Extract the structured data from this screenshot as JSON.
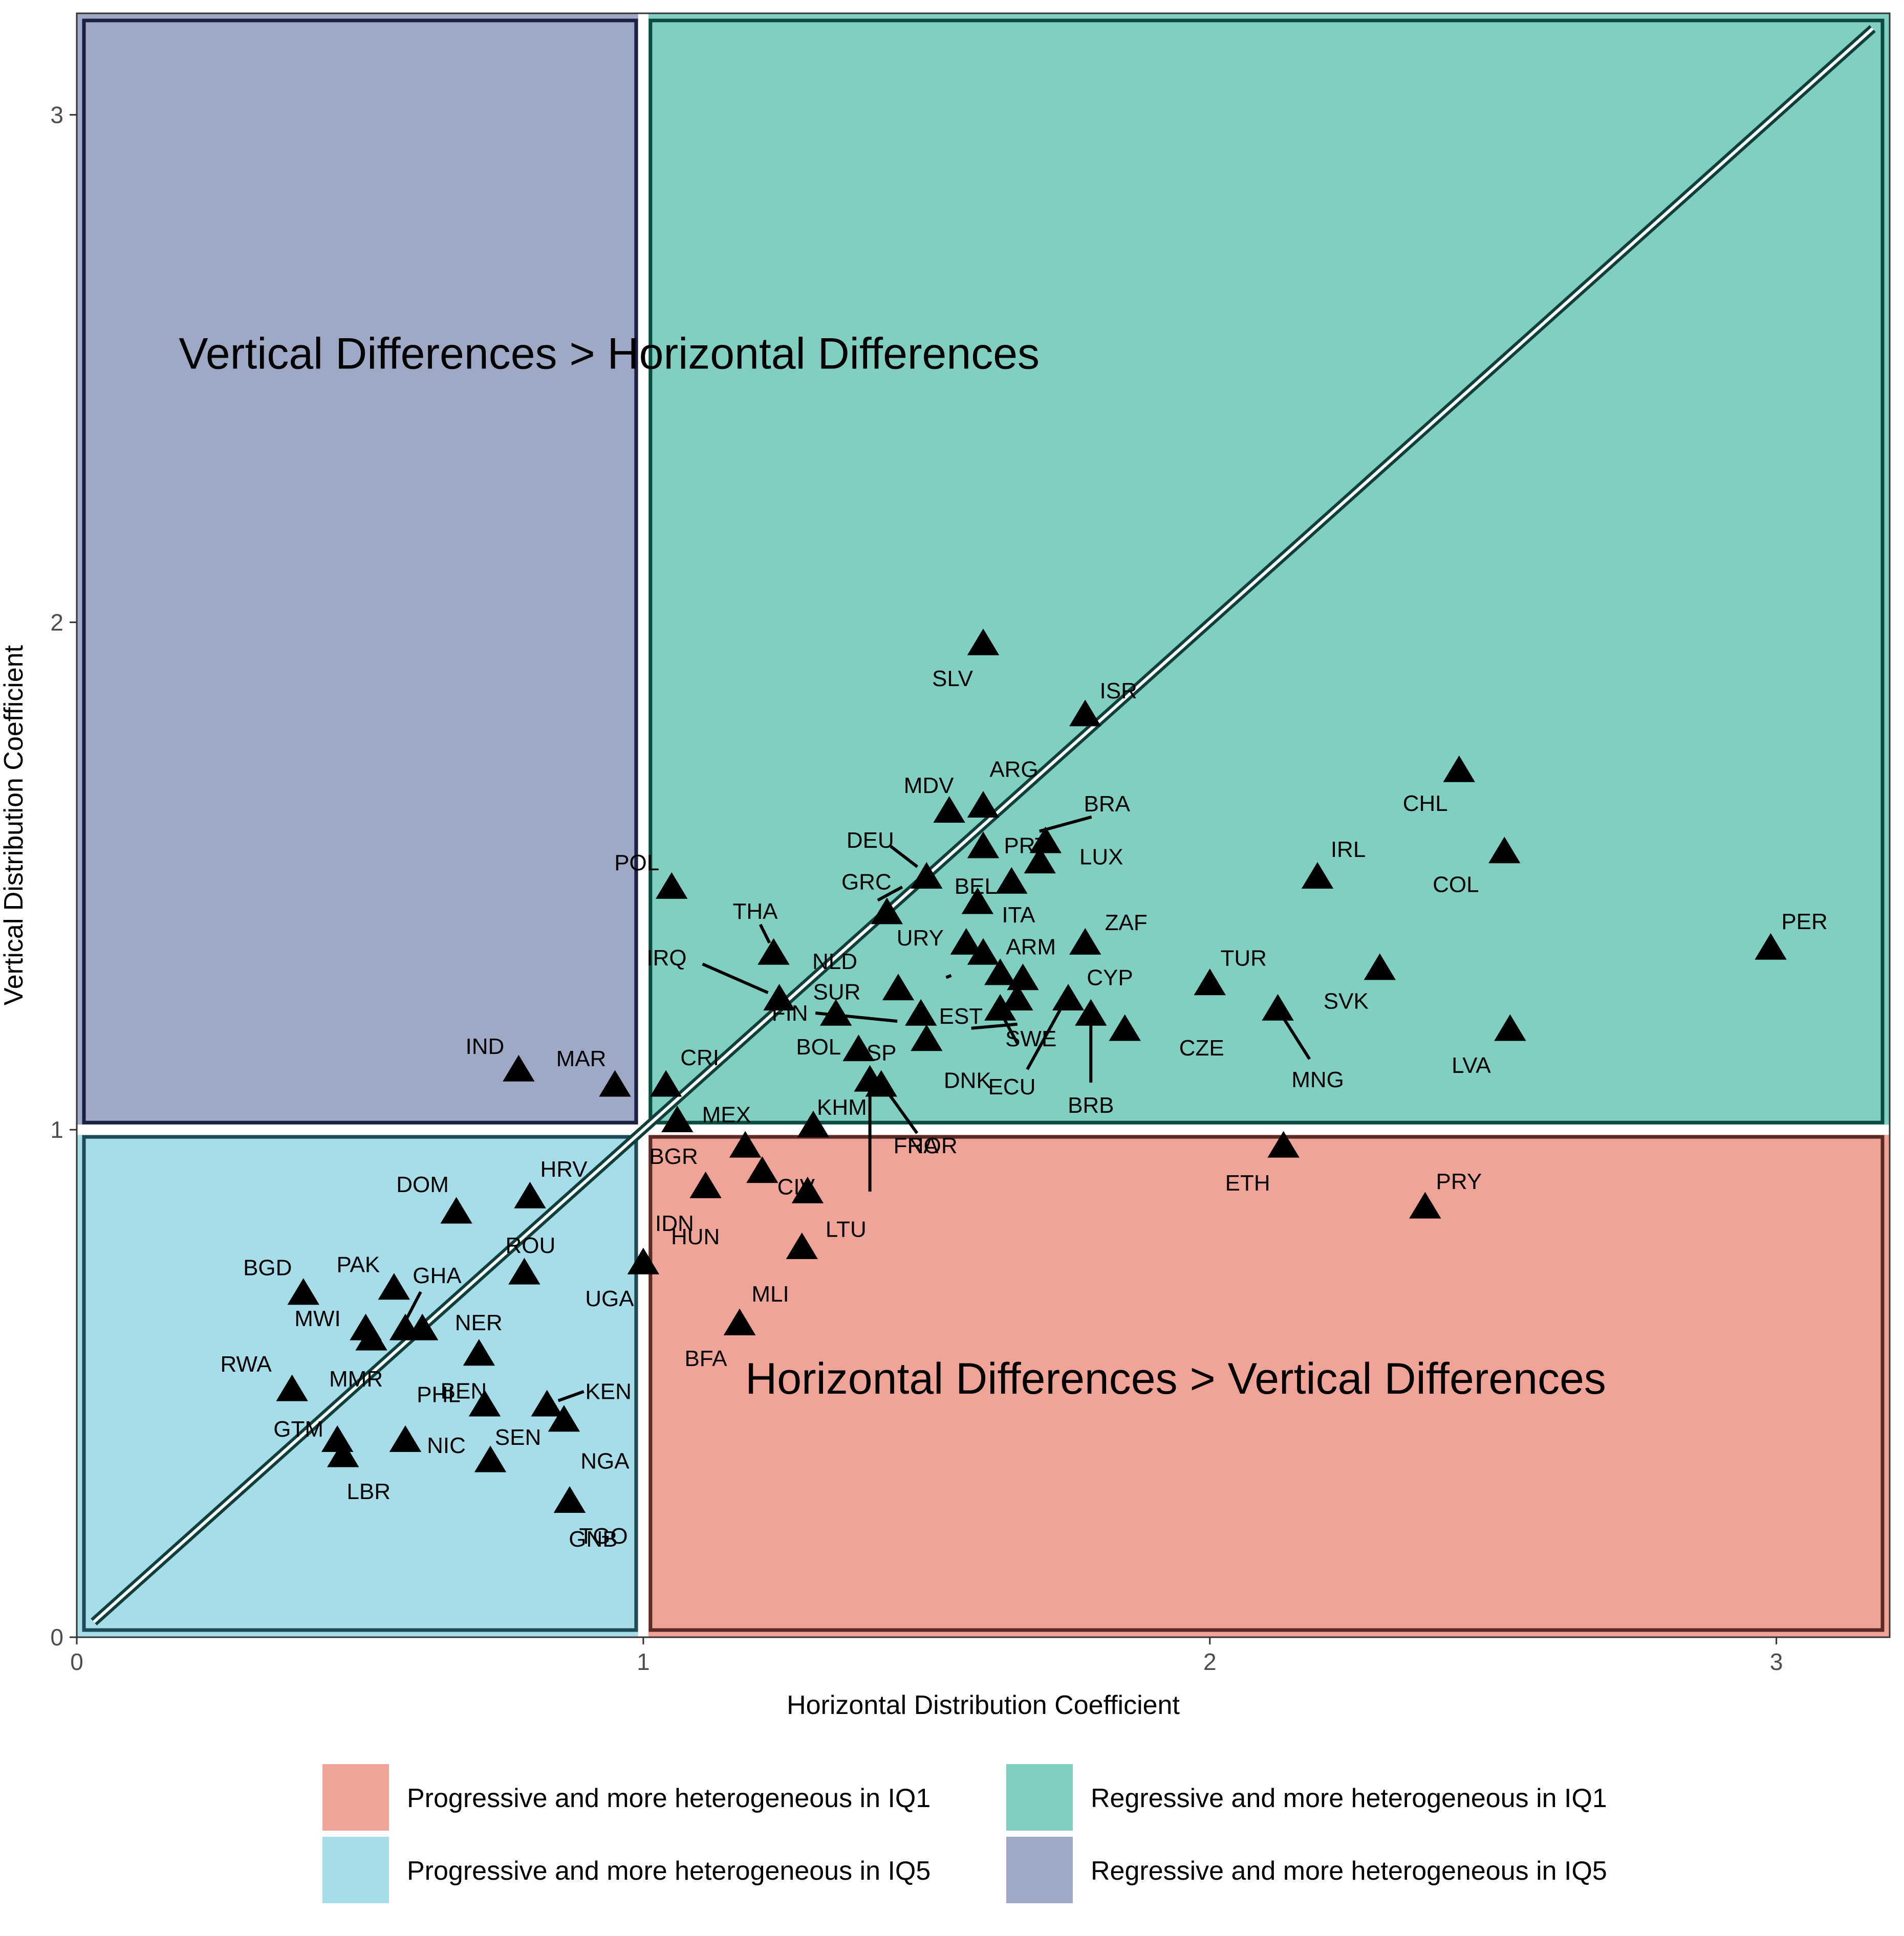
{
  "chart_data": {
    "type": "scatter",
    "xlabel": "Horizontal Distribution Coefficient",
    "ylabel": "Vertical Distribution Coefficient",
    "xlim": [
      0,
      3.2
    ],
    "ylim": [
      0,
      3.2
    ],
    "x_ticks": [
      "0",
      "1",
      "2",
      "3"
    ],
    "y_ticks": [
      "0",
      "1",
      "2",
      "3"
    ],
    "grid": false,
    "legend_position": "bottom",
    "diagonal_reference_line": true,
    "quadrant_divider": 1,
    "regions": [
      {
        "key": "progressive_iq1",
        "label": "Progressive and more heterogeneous in IQ1",
        "color": "#f0a498",
        "x": [
          1,
          3.2
        ],
        "y": [
          0,
          1
        ]
      },
      {
        "key": "regressive_iq1",
        "label": "Regressive and more heterogeneous in IQ1",
        "color": "#80cfc2",
        "x": [
          1,
          3.2
        ],
        "y": [
          1,
          3.2
        ]
      },
      {
        "key": "progressive_iq5",
        "label": "Progressive and more heterogeneous in IQ5",
        "color": "#a7dce9",
        "x": [
          0,
          1
        ],
        "y": [
          0,
          1
        ]
      },
      {
        "key": "regressive_iq5",
        "label": "Regressive and more heterogeneous in IQ5",
        "color": "#9ea9c6",
        "x": [
          0,
          1
        ],
        "y": [
          1,
          3.2
        ]
      }
    ],
    "annotations": [
      {
        "text": "Vertical Differences > Horizontal Differences",
        "x": 0.18,
        "y": 2.5
      },
      {
        "text": "Horizontal Differences > Vertical Differences",
        "x": 1.18,
        "y": 0.48
      }
    ],
    "points": [
      {
        "label": "SLV",
        "x": 1.6,
        "y": 1.96
      },
      {
        "label": "ISR",
        "x": 1.78,
        "y": 1.82
      },
      {
        "label": "CHL",
        "x": 2.44,
        "y": 1.71
      },
      {
        "label": "ARG",
        "x": 1.6,
        "y": 1.64
      },
      {
        "label": "MDV",
        "x": 1.54,
        "y": 1.63
      },
      {
        "label": "BRA",
        "x": 1.71,
        "y": 1.57
      },
      {
        "label": "PRT",
        "x": 1.6,
        "y": 1.56
      },
      {
        "label": "COL",
        "x": 2.52,
        "y": 1.55
      },
      {
        "label": "LUX",
        "x": 1.7,
        "y": 1.53
      },
      {
        "label": "DEU",
        "x": 1.5,
        "y": 1.5
      },
      {
        "label": "IRL",
        "x": 2.19,
        "y": 1.5
      },
      {
        "label": "BEL",
        "x": 1.65,
        "y": 1.49
      },
      {
        "label": "POL",
        "x": 1.05,
        "y": 1.48
      },
      {
        "label": "ITA",
        "x": 1.59,
        "y": 1.45
      },
      {
        "label": "GRC",
        "x": 1.43,
        "y": 1.43
      },
      {
        "label": "URY",
        "x": 1.57,
        "y": 1.37
      },
      {
        "label": "THA",
        "x": 1.23,
        "y": 1.35
      },
      {
        "label": "ZAF",
        "x": 1.78,
        "y": 1.37
      },
      {
        "label": "PER",
        "x": 2.99,
        "y": 1.36
      },
      {
        "label": "NLD",
        "x": 1.6,
        "y": 1.35
      },
      {
        "label": "ARM",
        "x": 1.63,
        "y": 1.31
      },
      {
        "label": "SVK",
        "x": 2.3,
        "y": 1.32
      },
      {
        "label": "CYP",
        "x": 1.67,
        "y": 1.3
      },
      {
        "label": "TUR",
        "x": 2.0,
        "y": 1.29
      },
      {
        "label": "SUR",
        "x": 1.45,
        "y": 1.28
      },
      {
        "label": "IRQ",
        "x": 1.24,
        "y": 1.26
      },
      {
        "label": "EST",
        "x": 1.66,
        "y": 1.26
      },
      {
        "label": "ECU",
        "x": 1.75,
        "y": 1.26
      },
      {
        "label": "FIN",
        "x": 1.34,
        "y": 1.23
      },
      {
        "label": "MNG",
        "x": 2.12,
        "y": 1.24
      },
      {
        "label": "BOL",
        "x": 1.49,
        "y": 1.23
      },
      {
        "label": "SWE",
        "x": 1.63,
        "y": 1.24
      },
      {
        "label": "BRB",
        "x": 1.79,
        "y": 1.23
      },
      {
        "label": "CZE",
        "x": 1.85,
        "y": 1.2
      },
      {
        "label": "LVA",
        "x": 2.53,
        "y": 1.2
      },
      {
        "label": "DNK",
        "x": 1.5,
        "y": 1.18
      },
      {
        "label": "ESP",
        "x": 1.38,
        "y": 1.16
      },
      {
        "label": "IND",
        "x": 0.78,
        "y": 1.12
      },
      {
        "label": "FRA",
        "x": 1.4,
        "y": 1.1
      },
      {
        "label": "CRI",
        "x": 1.04,
        "y": 1.09
      },
      {
        "label": "MAR",
        "x": 0.95,
        "y": 1.09
      },
      {
        "label": "NOR",
        "x": 1.42,
        "y": 1.09
      },
      {
        "label": "MEX",
        "x": 1.06,
        "y": 1.02
      },
      {
        "label": "KHM",
        "x": 1.3,
        "y": 1.01
      },
      {
        "label": "ETH",
        "x": 2.13,
        "y": 0.97
      },
      {
        "label": "BGR",
        "x": 1.18,
        "y": 0.97
      },
      {
        "label": "CIV",
        "x": 1.21,
        "y": 0.92
      },
      {
        "label": "HUN",
        "x": 1.11,
        "y": 0.89
      },
      {
        "label": "IDN",
        "x": 1.29,
        "y": 0.88
      },
      {
        "label": "HRV",
        "x": 0.8,
        "y": 0.87
      },
      {
        "label": "DOM",
        "x": 0.67,
        "y": 0.84
      },
      {
        "label": "PRY",
        "x": 2.38,
        "y": 0.85
      },
      {
        "label": "LTU",
        "x": 1.28,
        "y": 0.77
      },
      {
        "label": "UGA",
        "x": 1.0,
        "y": 0.74
      },
      {
        "label": "ROU",
        "x": 0.79,
        "y": 0.72
      },
      {
        "label": "PAK",
        "x": 0.56,
        "y": 0.69
      },
      {
        "label": "BGD",
        "x": 0.4,
        "y": 0.68
      },
      {
        "label": "GHA",
        "x": 0.58,
        "y": 0.61
      },
      {
        "label": "NER",
        "x": 0.61,
        "y": 0.61
      },
      {
        "label": "MWI",
        "x": 0.51,
        "y": 0.61
      },
      {
        "label": "MLI",
        "x": 1.17,
        "y": 0.62
      },
      {
        "label": "MMR",
        "x": 0.52,
        "y": 0.59
      },
      {
        "label": "BEN",
        "x": 0.71,
        "y": 0.56
      },
      {
        "label": "RWA",
        "x": 0.38,
        "y": 0.49
      },
      {
        "label": "PHL",
        "x": 0.72,
        "y": 0.46
      },
      {
        "label": "KEN",
        "x": 0.83,
        "y": 0.46
      },
      {
        "label": "NGA",
        "x": 0.86,
        "y": 0.43
      },
      {
        "label": "GTM",
        "x": 0.46,
        "y": 0.39
      },
      {
        "label": "NIC",
        "x": 0.58,
        "y": 0.39
      },
      {
        "label": "LBR",
        "x": 0.47,
        "y": 0.36
      },
      {
        "label": "SEN",
        "x": 0.73,
        "y": 0.35
      },
      {
        "label": "TGO",
        "x": 0.87,
        "y": 0.27
      },
      {
        "label": "GNB",
        "x": 0.87,
        "y": 0.27
      },
      {
        "label": "BFA",
        "x": 1.17,
        "y": 0.62
      }
    ]
  }
}
